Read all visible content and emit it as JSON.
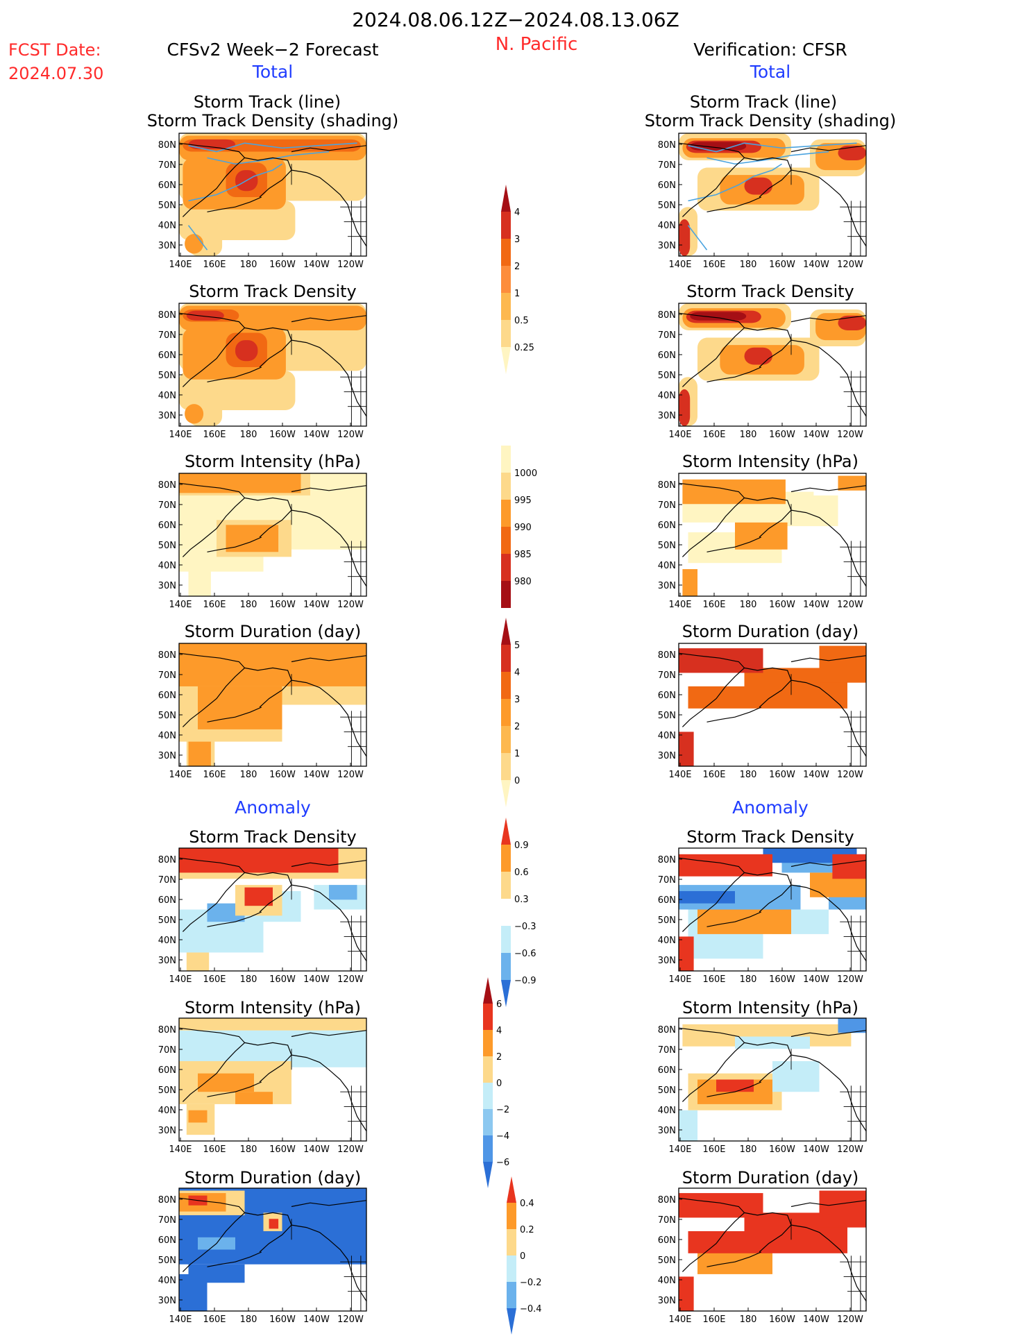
{
  "header": {
    "date_range": "2024.08.06.12Z−2024.08.13.06Z",
    "region": "N. Pacific",
    "fcst_label": "FCST Date:",
    "fcst_date": "2024.07.30",
    "left_title": "CFSv2 Week−2 Forecast",
    "right_title": "Verification: CFSR",
    "total_label": "Total",
    "anomaly_label": "Anomaly"
  },
  "colors": {
    "red_text": "#ff2a2a",
    "blue_text": "#1f3cff",
    "track_line": "#4aa3df",
    "land": "#ffffff"
  },
  "axes": {
    "lon_ticks": [
      "140E",
      "160E",
      "180",
      "160W",
      "140W",
      "120W"
    ],
    "lat_ticks": [
      "80N",
      "70N",
      "60N",
      "50N",
      "40N",
      "30N"
    ]
  },
  "panels": {
    "track_combo": {
      "title1": "Storm Track (line)",
      "title2": "Storm Track Density (shading)"
    },
    "track_density": {
      "title": "Storm Track Density"
    },
    "intensity": {
      "title": "Storm Intensity (hPa)"
    },
    "duration": {
      "title": "Storm Duration (day)"
    }
  },
  "colorbars": {
    "density_total": {
      "labels": [
        "4",
        "3",
        "2",
        "1",
        "0.5",
        "0.25"
      ],
      "colors": [
        "#a50f15",
        "#d7301f",
        "#f16913",
        "#fd8d3c",
        "#fdb84f",
        "#fdd98b",
        "#fff5c2"
      ]
    },
    "intensity_total": {
      "labels": [
        "1000",
        "995",
        "990",
        "985",
        "980"
      ],
      "colors": [
        "#fff5c2",
        "#fdd98b",
        "#fd9a2a",
        "#f16913",
        "#d7301f",
        "#a50f15"
      ]
    },
    "duration_total": {
      "labels": [
        "5",
        "4",
        "3",
        "2",
        "1",
        "0"
      ],
      "colors": [
        "#a50f15",
        "#d7301f",
        "#f16913",
        "#fd9a2a",
        "#fdb84f",
        "#fdd98b",
        "#fff5c2"
      ]
    },
    "density_anom": {
      "labels": [
        "0.9",
        "0.6",
        "0.3",
        "−0.3",
        "−0.6",
        "−0.9"
      ],
      "colors": [
        "#e8351f",
        "#fd9a2a",
        "#fdd98b",
        "#ffffff",
        "#c4edf8",
        "#6bb2ec",
        "#2b6fd6"
      ]
    },
    "intensity_anom": {
      "labels": [
        "6",
        "4",
        "2",
        "0",
        "−2",
        "−4",
        "−6"
      ],
      "colors": [
        "#a50f15",
        "#e8351f",
        "#fd9a2a",
        "#fdd98b",
        "#c4edf8",
        "#8cc8f0",
        "#4f96e6",
        "#2b6fd6"
      ]
    },
    "duration_anom": {
      "labels": [
        "0.4",
        "0.2",
        "0",
        "−0.2",
        "−0.4"
      ],
      "colors": [
        "#e8351f",
        "#fd9a2a",
        "#fdd98b",
        "#c4edf8",
        "#6bb2ec",
        "#2b6fd6"
      ]
    }
  },
  "chart_data": [
    {
      "id": "fc_track",
      "type": "heatmap",
      "title": "Storm Track (line) / Storm Track Density (shading)",
      "source": "CFSv2 Week−2 Forecast",
      "section": "Total"
    },
    {
      "id": "vf_track",
      "type": "heatmap",
      "title": "Storm Track (line) / Storm Track Density (shading)",
      "source": "Verification: CFSR",
      "section": "Total"
    },
    {
      "id": "fc_density",
      "type": "heatmap",
      "title": "Storm Track Density",
      "source": "CFSv2 Week−2 Forecast",
      "section": "Total",
      "colorbar": [
        0.25,
        0.5,
        1,
        2,
        3,
        4
      ]
    },
    {
      "id": "vf_density",
      "type": "heatmap",
      "title": "Storm Track Density",
      "source": "Verification: CFSR",
      "section": "Total",
      "colorbar": [
        0.25,
        0.5,
        1,
        2,
        3,
        4
      ]
    },
    {
      "id": "fc_intensity",
      "type": "heatmap",
      "title": "Storm Intensity (hPa)",
      "source": "CFSv2 Week−2 Forecast",
      "section": "Total",
      "colorbar": [
        980,
        985,
        990,
        995,
        1000
      ]
    },
    {
      "id": "vf_intensity",
      "type": "heatmap",
      "title": "Storm Intensity (hPa)",
      "source": "Verification: CFSR",
      "section": "Total",
      "colorbar": [
        980,
        985,
        990,
        995,
        1000
      ]
    },
    {
      "id": "fc_duration",
      "type": "heatmap",
      "title": "Storm Duration (day)",
      "source": "CFSv2 Week−2 Forecast",
      "section": "Total",
      "colorbar": [
        0,
        1,
        2,
        3,
        4,
        5
      ]
    },
    {
      "id": "vf_duration",
      "type": "heatmap",
      "title": "Storm Duration (day)",
      "source": "Verification: CFSR",
      "section": "Total",
      "colorbar": [
        0,
        1,
        2,
        3,
        4,
        5
      ]
    },
    {
      "id": "fc_density_anom",
      "type": "heatmap",
      "title": "Storm Track Density",
      "source": "CFSv2 Week−2 Forecast",
      "section": "Anomaly",
      "colorbar": [
        -0.9,
        -0.6,
        -0.3,
        0.3,
        0.6,
        0.9
      ]
    },
    {
      "id": "vf_density_anom",
      "type": "heatmap",
      "title": "Storm Track Density",
      "source": "Verification: CFSR",
      "section": "Anomaly",
      "colorbar": [
        -0.9,
        -0.6,
        -0.3,
        0.3,
        0.6,
        0.9
      ]
    },
    {
      "id": "fc_intensity_anom",
      "type": "heatmap",
      "title": "Storm Intensity (hPa)",
      "source": "CFSv2 Week−2 Forecast",
      "section": "Anomaly",
      "colorbar": [
        -6,
        -4,
        -2,
        0,
        2,
        4,
        6
      ]
    },
    {
      "id": "vf_intensity_anom",
      "type": "heatmap",
      "title": "Storm Intensity (hPa)",
      "source": "Verification: CFSR",
      "section": "Anomaly",
      "colorbar": [
        -6,
        -4,
        -2,
        0,
        2,
        4,
        6
      ]
    },
    {
      "id": "fc_duration_anom",
      "type": "heatmap",
      "title": "Storm Duration (day)",
      "source": "CFSv2 Week−2 Forecast",
      "section": "Anomaly",
      "colorbar": [
        -0.4,
        -0.2,
        0,
        0.2,
        0.4
      ]
    },
    {
      "id": "vf_duration_anom",
      "type": "heatmap",
      "title": "Storm Duration (day)",
      "source": "Verification: CFSR",
      "section": "Anomaly",
      "colorbar": [
        -0.4,
        -0.2,
        0,
        0.2,
        0.4
      ]
    }
  ]
}
